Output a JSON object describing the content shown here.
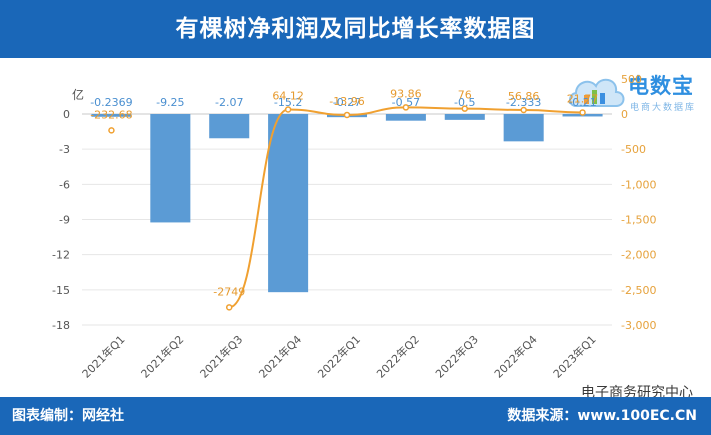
{
  "header": {
    "title": "有棵树净利润及同比增长率数据图"
  },
  "footer": {
    "compiler": "图表编制：网经社",
    "source": "数据来源：www.100EC.CN"
  },
  "watermark": {
    "text": "电子商务研究中心"
  },
  "logo": {
    "brand": "电数宝",
    "sub": "电商大数据库"
  },
  "colors": {
    "header_bg": "#1a67b8",
    "bar": "#5b9bd5",
    "line": "#f0a030",
    "left_axis_text": "#555555",
    "right_axis_text": "#e6a23c"
  },
  "chart_data": {
    "type": "bar",
    "categories": [
      "2021年Q1",
      "2021年Q2",
      "2021年Q3",
      "2021年Q4",
      "2022年Q1",
      "2022年Q2",
      "2022年Q3",
      "2022年Q4",
      "2023年Q1"
    ],
    "ylabel": "亿",
    "ylim": [
      -18,
      0
    ],
    "yticks": [
      0,
      -3,
      -6,
      -9,
      -12,
      -15,
      -18
    ],
    "y2lim": [
      -3000,
      500
    ],
    "y2ticks": [
      500,
      0,
      -500,
      -1000,
      -1500,
      -2000,
      -2500,
      -3000
    ],
    "y2tick_labels": [
      "500",
      "0",
      "-500",
      "-1,000",
      "-1,500",
      "-2,000",
      "-2,500",
      "-3,000"
    ],
    "grid": true,
    "series": [
      {
        "type": "bar",
        "axis": "left",
        "values": [
          -0.2369,
          -9.25,
          -2.07,
          -15.2,
          -0.27,
          -0.57,
          -0.5,
          -2.333,
          -0.21
        ],
        "labels": [
          "-0.2369",
          "-9.25",
          "-2.07",
          "-15.2",
          "-0.27",
          "-0.57",
          "-0.5",
          "-2.333",
          "-0.21"
        ]
      },
      {
        "type": "line",
        "axis": "right",
        "values": [
          -232.68,
          null,
          -2749,
          64.12,
          -13.96,
          93.86,
          76,
          56.86,
          21.77
        ],
        "labels": [
          "-232.68",
          "",
          "-2749",
          "64.12",
          "-13.96",
          "93.86",
          "76",
          "56.86",
          "21.77"
        ]
      }
    ]
  }
}
